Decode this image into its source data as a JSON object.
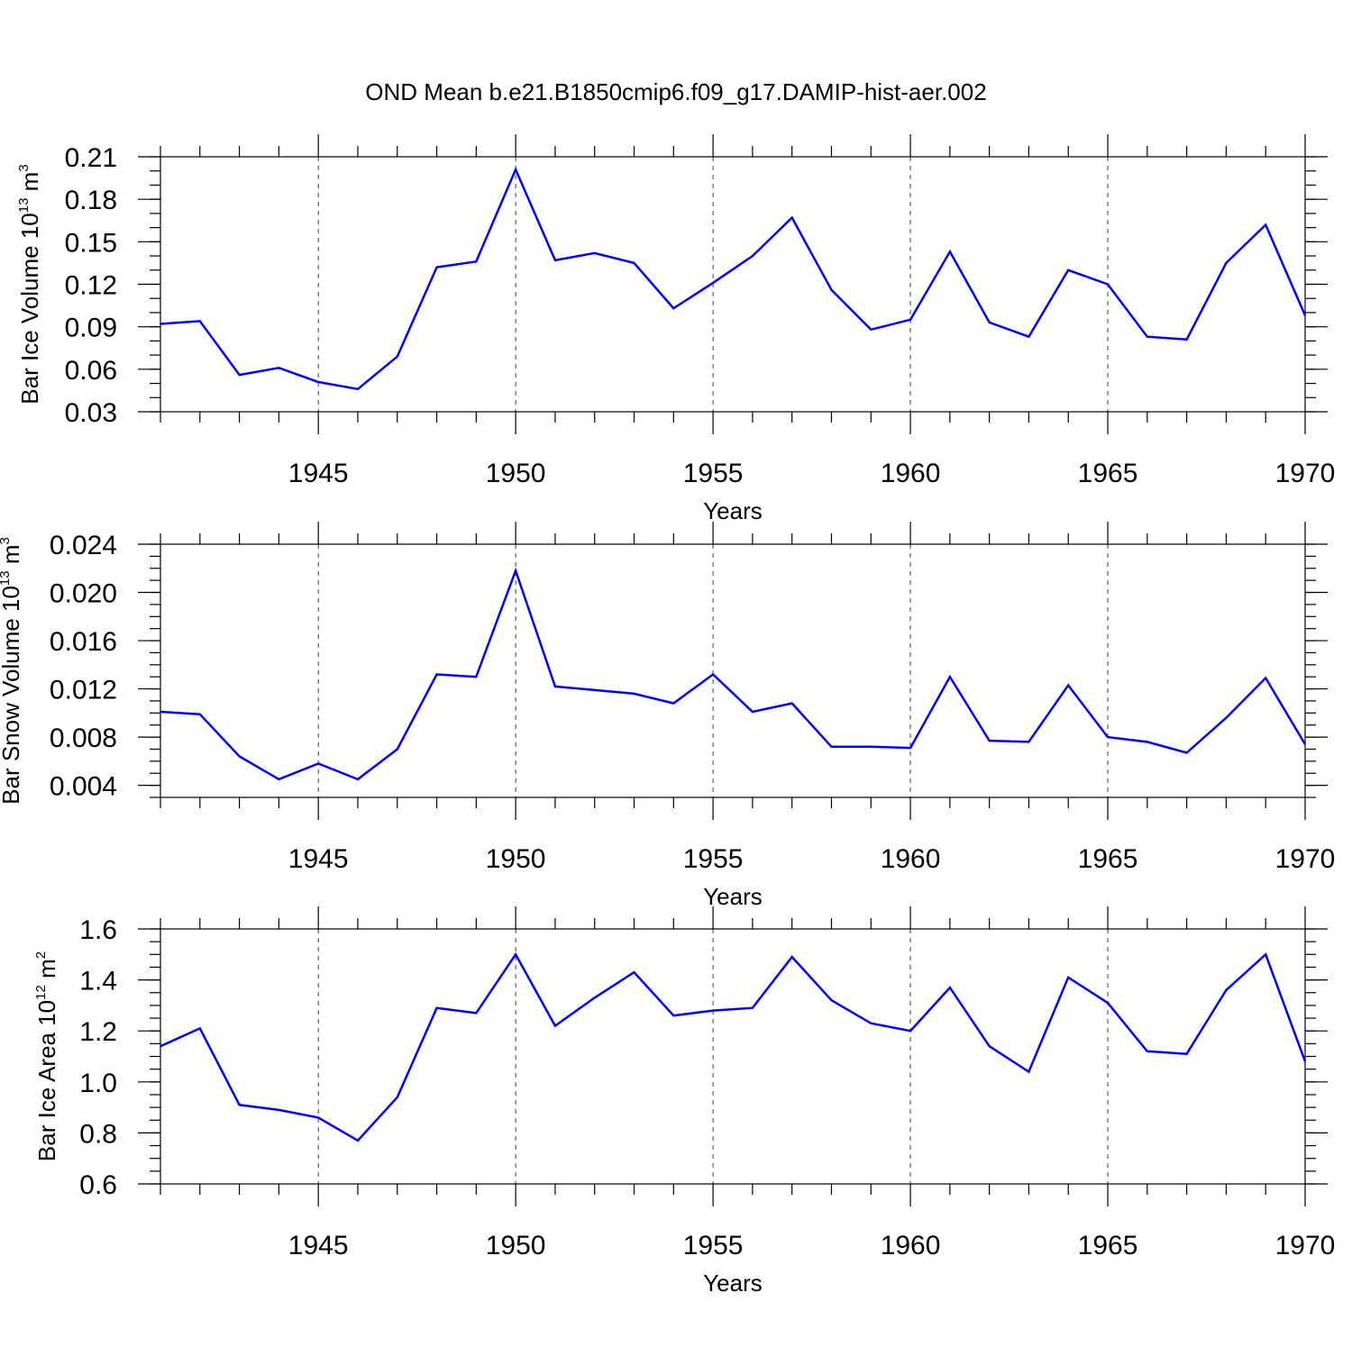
{
  "title": "OND Mean b.e21.B1850cmip6.f09_g17.DAMIP-hist-aer.002",
  "line_color": "#0000ff",
  "chart_data": [
    {
      "type": "line",
      "title": "OND Mean b.e21.B1850cmip6.f09_g17.DAMIP-hist-aer.002",
      "ylabel": "Bar Ice Volume 10",
      "ylabel_exp": "13",
      "ylabel_unit": " m",
      "ylabel_unit_exp": "3",
      "xlabel": "Years",
      "xlim": [
        1941,
        1970
      ],
      "ylim": [
        0.03,
        0.21
      ],
      "yticks": [
        0.03,
        0.06,
        0.09,
        0.12,
        0.15,
        0.18,
        0.21
      ],
      "ytick_labels": [
        "0.03",
        "0.06",
        "0.09",
        "0.12",
        "0.15",
        "0.18",
        "0.21"
      ],
      "yminor_step": 0.01,
      "xticks": [
        1945,
        1950,
        1955,
        1960,
        1965,
        1970
      ],
      "xtick_labels": [
        "1945",
        "1950",
        "1955",
        "1960",
        "1965",
        "1970"
      ],
      "grid": "vertical dashed at major x ticks",
      "series": [
        {
          "name": "Bar Ice Volume",
          "x": [
            1941,
            1942,
            1943,
            1944,
            1945,
            1946,
            1947,
            1948,
            1949,
            1950,
            1951,
            1952,
            1953,
            1954,
            1955,
            1956,
            1957,
            1958,
            1959,
            1960,
            1961,
            1962,
            1963,
            1964,
            1965,
            1966,
            1967,
            1968,
            1969,
            1970
          ],
          "values": [
            0.092,
            0.094,
            0.056,
            0.061,
            0.051,
            0.046,
            0.069,
            0.132,
            0.136,
            0.201,
            0.137,
            0.142,
            0.135,
            0.103,
            0.121,
            0.14,
            0.167,
            0.116,
            0.088,
            0.095,
            0.143,
            0.093,
            0.083,
            0.13,
            0.12,
            0.083,
            0.081,
            0.135,
            0.162,
            0.098
          ]
        }
      ]
    },
    {
      "type": "line",
      "ylabel": "Bar Snow Volume 10",
      "ylabel_exp": "13",
      "ylabel_unit": " m",
      "ylabel_unit_exp": "3",
      "xlabel": "Years",
      "xlim": [
        1941,
        1970
      ],
      "ylim": [
        0.003,
        0.024
      ],
      "yticks": [
        0.004,
        0.008,
        0.012,
        0.016,
        0.02,
        0.024
      ],
      "ytick_labels": [
        "0.004",
        "0.008",
        "0.012",
        "0.016",
        "0.020",
        "0.024"
      ],
      "yminor_step": 0.001,
      "xticks": [
        1945,
        1950,
        1955,
        1960,
        1965,
        1970
      ],
      "xtick_labels": [
        "1945",
        "1950",
        "1955",
        "1960",
        "1965",
        "1970"
      ],
      "grid": "vertical dashed at major x ticks",
      "series": [
        {
          "name": "Bar Snow Volume",
          "x": [
            1941,
            1942,
            1943,
            1944,
            1945,
            1946,
            1947,
            1948,
            1949,
            1950,
            1951,
            1952,
            1953,
            1954,
            1955,
            1956,
            1957,
            1958,
            1959,
            1960,
            1961,
            1962,
            1963,
            1964,
            1965,
            1966,
            1967,
            1968,
            1969,
            1970
          ],
          "values": [
            0.0101,
            0.0099,
            0.0064,
            0.0045,
            0.0058,
            0.0045,
            0.007,
            0.0132,
            0.013,
            0.0218,
            0.0122,
            0.0119,
            0.0116,
            0.0108,
            0.0132,
            0.0101,
            0.0108,
            0.0072,
            0.0072,
            0.0071,
            0.013,
            0.0077,
            0.0076,
            0.0123,
            0.008,
            0.0076,
            0.0067,
            0.0096,
            0.0129,
            0.0074
          ]
        }
      ]
    },
    {
      "type": "line",
      "ylabel": "Bar Ice Area 10",
      "ylabel_exp": "12",
      "ylabel_unit": " m",
      "ylabel_unit_exp": "2",
      "xlabel": "Years",
      "xlim": [
        1941,
        1970
      ],
      "ylim": [
        0.6,
        1.6
      ],
      "yticks": [
        0.6,
        0.8,
        1.0,
        1.2,
        1.4,
        1.6
      ],
      "ytick_labels": [
        "0.6",
        "0.8",
        "1.0",
        "1.2",
        "1.4",
        "1.6"
      ],
      "yminor_step": 0.05,
      "xticks": [
        1945,
        1950,
        1955,
        1960,
        1965,
        1970
      ],
      "xtick_labels": [
        "1945",
        "1950",
        "1955",
        "1960",
        "1965",
        "1970"
      ],
      "grid": "vertical dashed at major x ticks",
      "series": [
        {
          "name": "Bar Ice Area",
          "x": [
            1941,
            1942,
            1943,
            1944,
            1945,
            1946,
            1947,
            1948,
            1949,
            1950,
            1951,
            1952,
            1953,
            1954,
            1955,
            1956,
            1957,
            1958,
            1959,
            1960,
            1961,
            1962,
            1963,
            1964,
            1965,
            1966,
            1967,
            1968,
            1969,
            1970
          ],
          "values": [
            1.14,
            1.21,
            0.91,
            0.89,
            0.86,
            0.77,
            0.94,
            1.29,
            1.27,
            1.5,
            1.22,
            1.33,
            1.43,
            1.26,
            1.28,
            1.29,
            1.49,
            1.32,
            1.23,
            1.2,
            1.37,
            1.14,
            1.04,
            1.41,
            1.31,
            1.12,
            1.11,
            1.36,
            1.5,
            1.08
          ]
        }
      ]
    }
  ]
}
